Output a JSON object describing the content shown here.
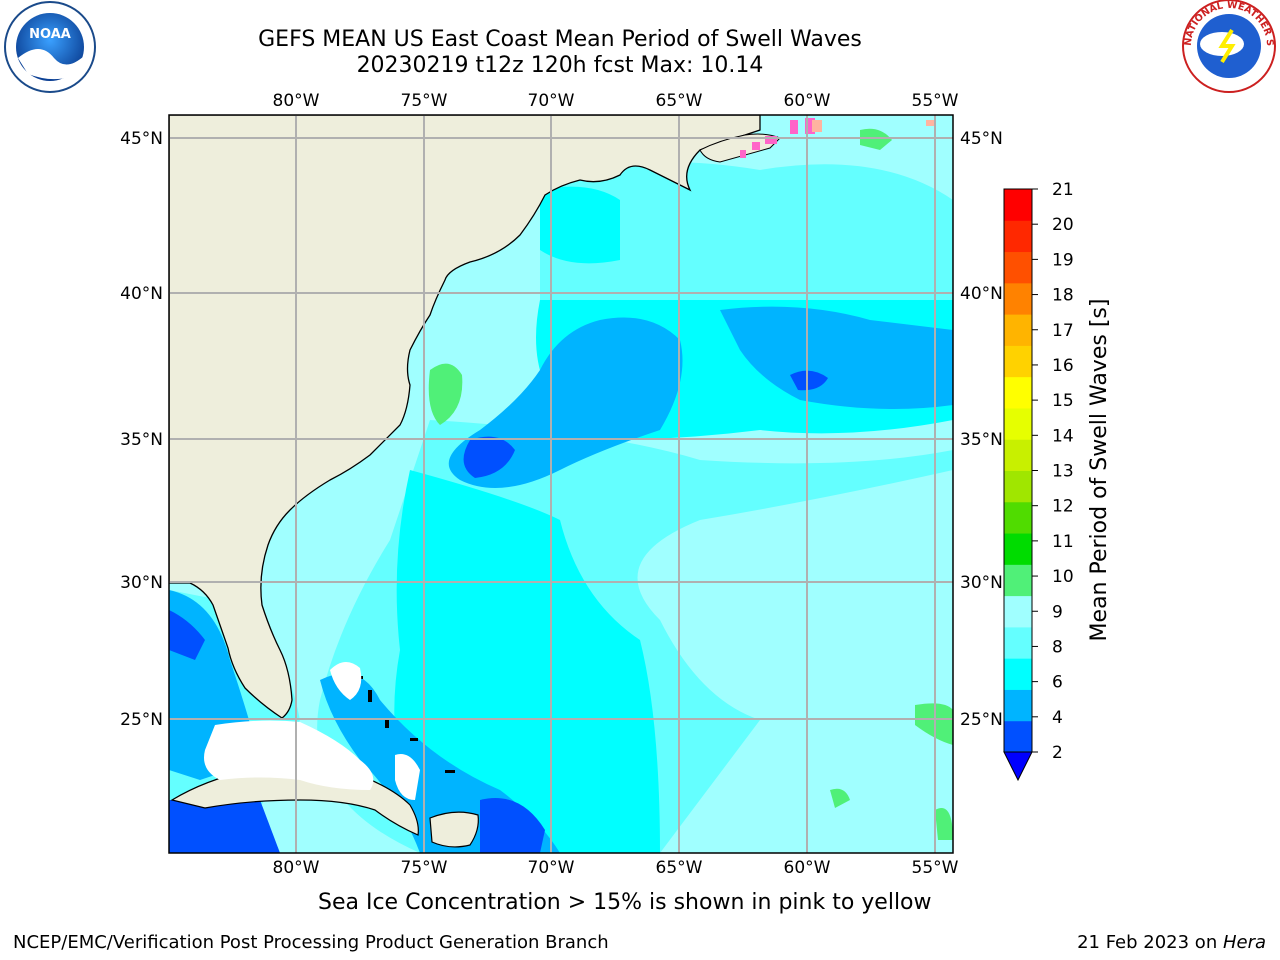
{
  "title": {
    "line1": "GEFS MEAN US East Coast Mean Period of Swell Waves",
    "line2": "20230219 t12z 120h fcst   Max: 10.14"
  },
  "map": {
    "lon_ticks": [
      "80°W",
      "75°W",
      "70°W",
      "65°W",
      "60°W",
      "55°W"
    ],
    "lat_ticks": [
      "45°N",
      "40°N",
      "35°N",
      "30°N",
      "25°N"
    ]
  },
  "colorbar": {
    "label": "Mean Period of Swell Waves [s]",
    "ticks": [
      "2",
      "4",
      "6",
      "8",
      "9",
      "10",
      "11",
      "12",
      "13",
      "14",
      "15",
      "16",
      "17",
      "18",
      "19",
      "20",
      "21"
    ],
    "colors": [
      "#0050ff",
      "#00b4ff",
      "#00ffff",
      "#64ffff",
      "#a0ffff",
      "#50f078",
      "#00dc00",
      "#50dc00",
      "#a0e600",
      "#c8f000",
      "#e6ff00",
      "#ffff00",
      "#ffd200",
      "#ffb400",
      "#ff8200",
      "#ff5000",
      "#ff2800",
      "#ff0000"
    ],
    "under_color": "#0000ff"
  },
  "legend": {
    "note": "Sea Ice Concentration > 15% is shown in pink to yellow"
  },
  "footer": {
    "left": "NCEP/EMC/Verification Post Processing Product Generation Branch",
    "date": "21 Feb 2023 on ",
    "machine": "Hera"
  },
  "logos": {
    "noaa_text": "NOAA",
    "nws_text": "NATIONAL WEATHER SERVICE"
  }
}
